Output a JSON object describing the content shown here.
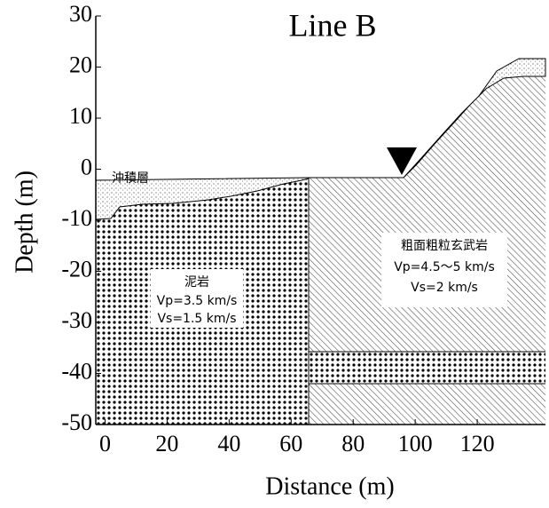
{
  "chart_data": {
    "type": "cross-section",
    "title": "Line B",
    "x_label": "Distance (m)",
    "y_label": "Depth (m)",
    "xlim": [
      -3,
      142
    ],
    "ylim": [
      -50,
      30
    ],
    "xticks": [
      0,
      20,
      40,
      60,
      80,
      100,
      120
    ],
    "yticks": [
      30,
      20,
      10,
      0,
      -10,
      -20,
      -30,
      -40,
      -50
    ],
    "annotations": {
      "alluvium": "沖積層",
      "mudstone": [
        "泥岩",
        "Vp=3.5 km/s",
        "Vs=1.5 km/s"
      ],
      "basalt": [
        "粗面粗粒玄武岩",
        "Vp=4.5～5 km/s",
        "Vs=2 km/s"
      ]
    }
  }
}
